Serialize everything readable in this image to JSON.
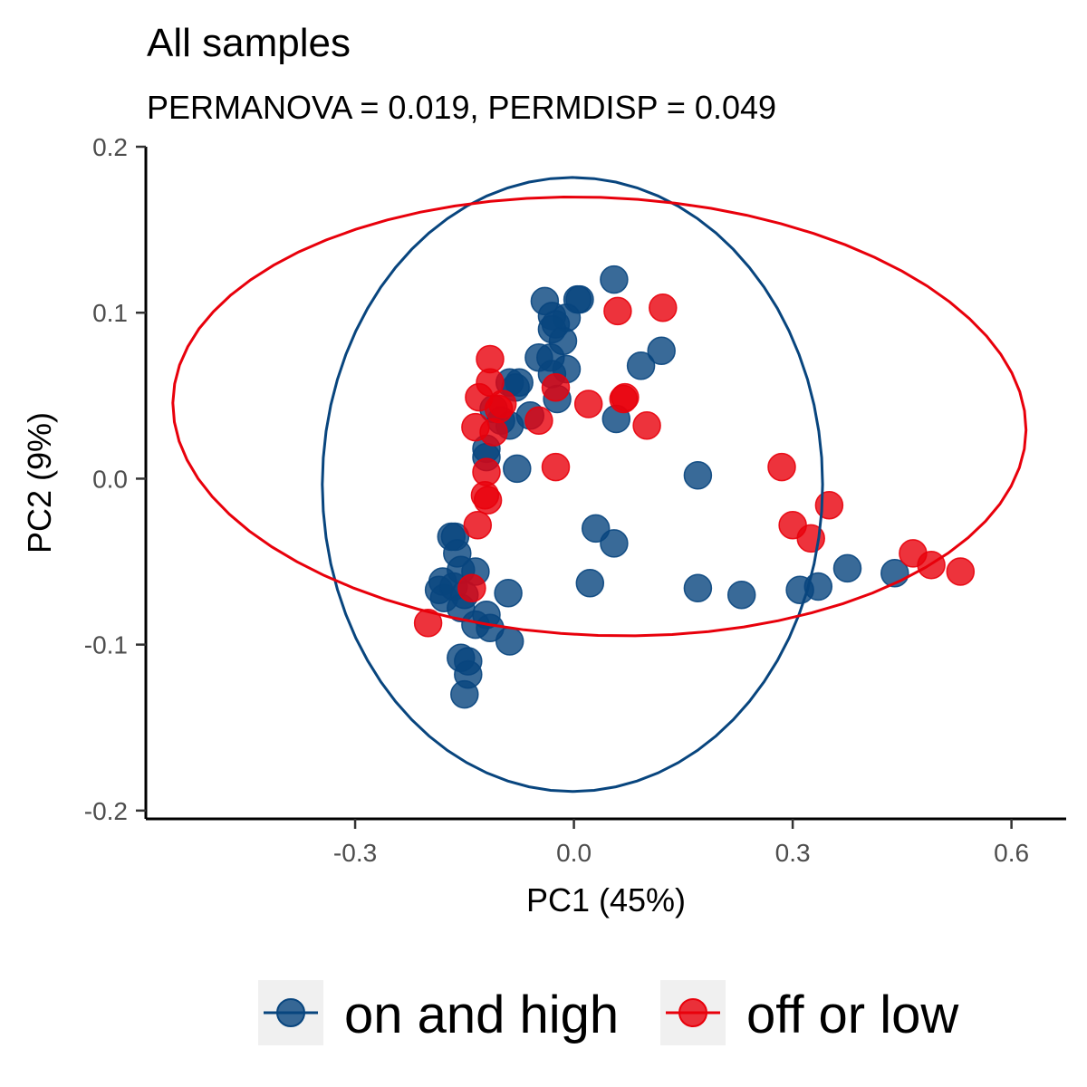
{
  "chart_data": {
    "type": "scatter",
    "title": "All samples",
    "subtitle": "PERMANOVA = 0.019, PERMDISP = 0.049",
    "xlabel": "PC1 (45%)",
    "ylabel": "PC2 (9%)",
    "xlim": [
      -0.587,
      0.675
    ],
    "ylim": [
      -0.205,
      0.2
    ],
    "x_ticks": [
      -0.3,
      0.0,
      0.3,
      0.6
    ],
    "x_tick_labels": [
      "-0.3",
      "0.0",
      "0.3",
      "0.6"
    ],
    "y_ticks": [
      -0.2,
      -0.1,
      0.0,
      0.1,
      0.2
    ],
    "y_tick_labels": [
      "-0.2",
      "-0.1",
      "0.0",
      "0.1",
      "0.2"
    ],
    "grid": false,
    "legend_position": "bottom",
    "series": [
      {
        "name": "on and high",
        "color": "#08457e",
        "points": [
          [
            0.055,
            0.12
          ],
          [
            -0.04,
            0.107
          ],
          [
            0.005,
            0.108
          ],
          [
            0.008,
            0.108
          ],
          [
            -0.03,
            0.098
          ],
          [
            -0.01,
            0.097
          ],
          [
            -0.025,
            0.093
          ],
          [
            -0.03,
            0.09
          ],
          [
            -0.015,
            0.083
          ],
          [
            0.12,
            0.077
          ],
          [
            -0.048,
            0.073
          ],
          [
            -0.032,
            0.073
          ],
          [
            0.092,
            0.068
          ],
          [
            -0.01,
            0.066
          ],
          [
            -0.03,
            0.063
          ],
          [
            -0.088,
            0.058
          ],
          [
            -0.075,
            0.058
          ],
          [
            -0.08,
            0.055
          ],
          [
            -0.023,
            0.048
          ],
          [
            -0.11,
            0.042
          ],
          [
            -0.06,
            0.038
          ],
          [
            -0.1,
            0.035
          ],
          [
            -0.088,
            0.032
          ],
          [
            0.058,
            0.036
          ],
          [
            -0.12,
            0.018
          ],
          [
            -0.12,
            0.013
          ],
          [
            -0.078,
            0.006
          ],
          [
            0.17,
            0.002
          ],
          [
            0.03,
            -0.03
          ],
          [
            -0.168,
            -0.035
          ],
          [
            -0.163,
            -0.035
          ],
          [
            0.055,
            -0.039
          ],
          [
            -0.16,
            -0.045
          ],
          [
            -0.155,
            -0.055
          ],
          [
            -0.135,
            -0.056
          ],
          [
            -0.18,
            -0.062
          ],
          [
            -0.185,
            -0.067
          ],
          [
            -0.178,
            -0.072
          ],
          [
            -0.165,
            -0.065
          ],
          [
            -0.15,
            -0.07
          ],
          [
            -0.09,
            -0.069
          ],
          [
            0.022,
            -0.063
          ],
          [
            0.17,
            -0.066
          ],
          [
            0.23,
            -0.07
          ],
          [
            0.31,
            -0.067
          ],
          [
            0.335,
            -0.065
          ],
          [
            0.375,
            -0.054
          ],
          [
            0.44,
            -0.057
          ],
          [
            -0.155,
            -0.078
          ],
          [
            -0.12,
            -0.082
          ],
          [
            -0.135,
            -0.088
          ],
          [
            -0.115,
            -0.09
          ],
          [
            -0.088,
            -0.098
          ],
          [
            -0.155,
            -0.108
          ],
          [
            -0.145,
            -0.11
          ],
          [
            -0.145,
            -0.118
          ],
          [
            -0.15,
            -0.13
          ]
        ]
      },
      {
        "name": "off or low",
        "color": "#e8000b",
        "points": [
          [
            0.06,
            0.101
          ],
          [
            0.122,
            0.103
          ],
          [
            -0.115,
            0.072
          ],
          [
            -0.115,
            0.058
          ],
          [
            -0.13,
            0.049
          ],
          [
            -0.098,
            0.045
          ],
          [
            -0.103,
            0.042
          ],
          [
            -0.025,
            0.055
          ],
          [
            0.02,
            0.045
          ],
          [
            0.07,
            0.049
          ],
          [
            0.068,
            0.048
          ],
          [
            0.1,
            0.032
          ],
          [
            -0.048,
            0.035
          ],
          [
            -0.135,
            0.031
          ],
          [
            -0.11,
            0.028
          ],
          [
            -0.12,
            0.004
          ],
          [
            -0.025,
            0.007
          ],
          [
            -0.122,
            -0.01
          ],
          [
            -0.118,
            -0.013
          ],
          [
            -0.132,
            -0.028
          ],
          [
            0.285,
            0.007
          ],
          [
            0.35,
            -0.016
          ],
          [
            0.3,
            -0.028
          ],
          [
            0.325,
            -0.036
          ],
          [
            0.465,
            -0.045
          ],
          [
            0.49,
            -0.052
          ],
          [
            0.53,
            -0.056
          ],
          [
            -0.14,
            -0.066
          ],
          [
            -0.2,
            -0.087
          ]
        ]
      }
    ],
    "ellipses": [
      {
        "series": "on and high",
        "cx": -0.002,
        "cy": -0.0035,
        "rx": 0.343,
        "ry": 0.185,
        "angle_deg": 0
      },
      {
        "series": "off or low",
        "cx": 0.035,
        "cy": 0.0375,
        "rx": 0.585,
        "ry": 0.132,
        "angle_deg": -0.8
      }
    ]
  }
}
